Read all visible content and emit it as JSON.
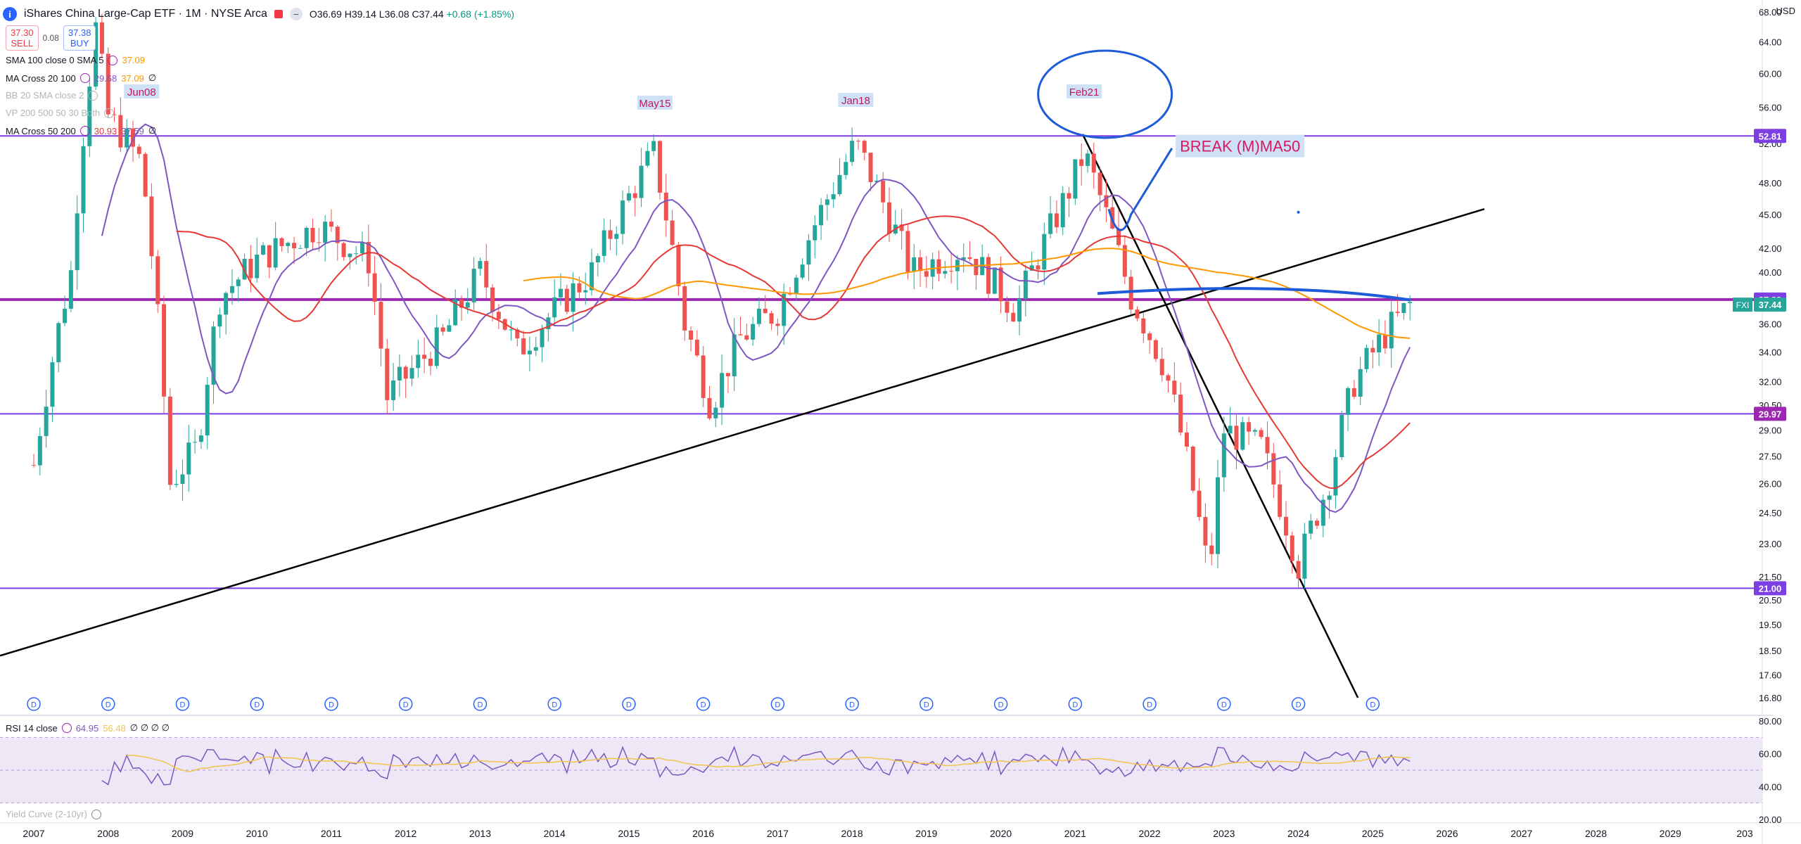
{
  "header": {
    "title": "iShares China Large-Cap ETF · 1M · NYSE Arca",
    "open": "O36.69",
    "high": "H39.14",
    "low": "L36.08",
    "close": "C37.44",
    "change": "+0.68 (+1.85%)"
  },
  "trade": {
    "sell_price": "37.30",
    "sell_label": "SELL",
    "spread": "0.08",
    "buy_price": "37.38",
    "buy_label": "BUY"
  },
  "indicators": [
    {
      "name": "SMA 100 close 0 SMA 5",
      "v1": "37.09",
      "v2": ""
    },
    {
      "name": "MA Cross 20 100",
      "v1": "29.68",
      "v2": "37.09",
      "v3": "∅"
    },
    {
      "name": "BB 20 SMA close 2",
      "v1": "",
      "v2": ""
    },
    {
      "name": "VP 200 500 50 30 Both",
      "v1": "",
      "v2": ""
    },
    {
      "name": "MA Cross 50 200",
      "v1": "30.93",
      "v2": "37.59",
      "v3": "∅"
    }
  ],
  "currency": "USD",
  "rsi": {
    "label": "RSI 14 close",
    "v1": "64.95",
    "v2": "56.48",
    "rest": "∅ ∅ ∅ ∅"
  },
  "yield_label": "Yield Curve (2-10yr)",
  "colors": {
    "up": "#26a69a",
    "down": "#ef5350",
    "ma_short": "#7e57c2",
    "ma_mid": "#e53935",
    "ma_long": "#ff9800",
    "hline": "#7b3fe4",
    "annot": "#1e5bd8",
    "rsi": "#7e57c2"
  },
  "chart_data": {
    "type": "candlestick",
    "symbol": "FXI",
    "interval": "1M",
    "ylim": [
      16.8,
      68.0
    ],
    "y_ticks": [
      68.0,
      64.0,
      60.0,
      56.0,
      52.0,
      48.0,
      45.0,
      42.0,
      40.0,
      38.0,
      36.0,
      34.0,
      32.0,
      30.5,
      29.0,
      27.5,
      26.0,
      24.5,
      23.0,
      21.5,
      20.5,
      19.5,
      18.5,
      17.6,
      16.8
    ],
    "x_ticks": [
      "2007",
      "2008",
      "2009",
      "2010",
      "2011",
      "2012",
      "2013",
      "2014",
      "2015",
      "2016",
      "2017",
      "2018",
      "2019",
      "2020",
      "2021",
      "2022",
      "2023",
      "2024",
      "2025",
      "2026",
      "2027",
      "2028",
      "2029",
      "203"
    ],
    "price_labels": [
      {
        "text": "52.81",
        "value": 52.81,
        "color": "#7b3fe4"
      },
      {
        "text": "37.83",
        "value": 37.83,
        "color": "#7b3fe4"
      },
      {
        "text": "37.44",
        "value": 37.44,
        "color": "#26a69a",
        "tag": "FXI"
      },
      {
        "text": "29.97",
        "value": 29.97,
        "color": "#9c27b0"
      },
      {
        "text": "21.00",
        "value": 21.0,
        "color": "#7b3fe4"
      }
    ],
    "horizontal_lines": [
      52.81,
      37.83,
      29.97,
      21.0
    ],
    "peak_labels": [
      {
        "text": "Jun08",
        "year": 2008.45,
        "value": 57.5
      },
      {
        "text": "May15",
        "year": 2015.35,
        "value": 56.2
      },
      {
        "text": "Jan18",
        "year": 2018.05,
        "value": 56.5
      },
      {
        "text": "Feb21",
        "year": 2021.12,
        "value": 57.5
      }
    ],
    "annotation": "BREAK (M)MA50",
    "monthly_closes": [
      {
        "year": 2007.0,
        "close": 27.0
      },
      {
        "year": 2007.5,
        "close": 40.0
      },
      {
        "year": 2007.83,
        "close": 66.0
      },
      {
        "year": 2008.0,
        "close": 55.0
      },
      {
        "year": 2008.45,
        "close": 50.0
      },
      {
        "year": 2008.83,
        "close": 26.0
      },
      {
        "year": 2009.2,
        "close": 28.0
      },
      {
        "year": 2009.5,
        "close": 38.0
      },
      {
        "year": 2010.0,
        "close": 41.0
      },
      {
        "year": 2010.83,
        "close": 44.0
      },
      {
        "year": 2011.5,
        "close": 41.0
      },
      {
        "year": 2011.75,
        "close": 31.0
      },
      {
        "year": 2012.5,
        "close": 35.0
      },
      {
        "year": 2013.0,
        "close": 40.0
      },
      {
        "year": 2013.5,
        "close": 34.0
      },
      {
        "year": 2014.5,
        "close": 40.0
      },
      {
        "year": 2015.33,
        "close": 51.0
      },
      {
        "year": 2015.75,
        "close": 36.0
      },
      {
        "year": 2016.1,
        "close": 30.5
      },
      {
        "year": 2016.5,
        "close": 35.0
      },
      {
        "year": 2017.0,
        "close": 37.0
      },
      {
        "year": 2018.05,
        "close": 52.0
      },
      {
        "year": 2018.8,
        "close": 40.0
      },
      {
        "year": 2019.5,
        "close": 42.0
      },
      {
        "year": 2020.2,
        "close": 37.0
      },
      {
        "year": 2020.9,
        "close": 47.0
      },
      {
        "year": 2021.12,
        "close": 51.0
      },
      {
        "year": 2021.75,
        "close": 38.0
      },
      {
        "year": 2022.2,
        "close": 33.0
      },
      {
        "year": 2022.8,
        "close": 21.5
      },
      {
        "year": 2023.0,
        "close": 29.0
      },
      {
        "year": 2023.5,
        "close": 28.0
      },
      {
        "year": 2024.0,
        "close": 22.0
      },
      {
        "year": 2024.4,
        "close": 26.0
      },
      {
        "year": 2024.75,
        "close": 32.0
      },
      {
        "year": 2025.2,
        "close": 35.5
      },
      {
        "year": 2025.5,
        "close": 37.44
      }
    ]
  }
}
